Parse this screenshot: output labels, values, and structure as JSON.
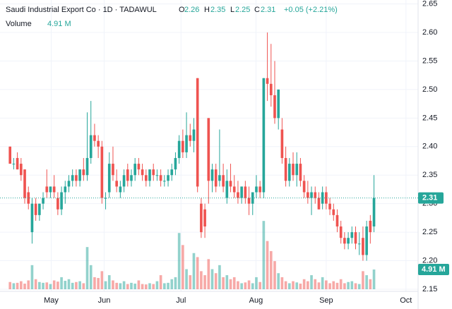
{
  "chart_data": {
    "type": "candlestick",
    "title": "Saudi Industrial Export Co · 1D · TADAWUL",
    "header": {
      "o_label": "O",
      "open": 2.26,
      "h_label": "H",
      "high": 2.35,
      "l_label": "L",
      "low": 2.25,
      "c_label": "C",
      "close": 2.31,
      "change": "+0.05 (+2.21%)",
      "volume_label": "Volume",
      "volume": {
        "value": 4.91,
        "label": "4.91 M"
      }
    },
    "last_price": 2.31,
    "up_color": "#26a69a",
    "down_color": "#ef5350",
    "grid": true,
    "ylim": [
      2.15,
      2.65
    ],
    "yticks": [
      2.15,
      {
        "value": 2.2,
        "label": "2.20"
      },
      2.25,
      {
        "value": 2.3,
        "label": "2.30"
      },
      2.35,
      {
        "value": 2.4,
        "label": "2.40"
      },
      2.45,
      {
        "value": 2.5,
        "label": "2.50"
      },
      2.55,
      {
        "value": 2.6,
        "label": "2.60"
      },
      2.65
    ],
    "xlim": [
      -1,
      111
    ],
    "xticks": [
      {
        "value": 11.2,
        "label": "May"
      },
      {
        "value": 25.6,
        "label": "Jun"
      },
      {
        "value": 46.5,
        "label": "Jul"
      },
      {
        "value": 66.9,
        "label": "Aug"
      },
      {
        "value": 86,
        "label": "Sep"
      },
      {
        "value": 107.7,
        "label": "Oct"
      }
    ],
    "volume_ylim": [
      0,
      71
    ],
    "open": [
      2.4,
      2.37,
      2.38,
      2.37,
      2.36,
      2.32,
      2.25,
      2.3,
      2.28,
      2.3,
      2.33,
      2.32,
      2.33,
      2.31,
      2.29,
      2.32,
      2.33,
      2.34,
      2.35,
      2.34,
      2.36,
      2.35,
      2.38,
      2.42,
      2.41,
      2.4,
      2.31,
      2.32,
      2.37,
      2.34,
      2.32,
      2.33,
      2.36,
      2.34,
      2.35,
      2.37,
      2.36,
      2.35,
      2.34,
      2.36,
      2.35,
      2.35,
      2.34,
      2.34,
      2.35,
      2.36,
      2.38,
      2.41,
      2.39,
      2.42,
      2.41,
      2.52,
      2.3,
      2.29,
      2.45,
      2.34,
      2.36,
      2.34,
      2.35,
      2.31,
      2.34,
      2.33,
      2.32,
      2.31,
      2.33,
      2.31,
      2.3,
      2.32,
      2.33,
      2.32,
      2.52,
      2.51,
      2.49,
      2.45,
      2.43,
      2.38,
      2.34,
      2.37,
      2.35,
      2.37,
      2.34,
      2.32,
      2.31,
      2.32,
      2.31,
      2.3,
      2.32,
      2.3,
      2.29,
      2.28,
      2.26,
      2.24,
      2.23,
      2.24,
      2.25,
      2.23,
      2.24,
      2.21,
      2.27,
      2.26
    ],
    "high": [
      2.4,
      2.38,
      2.39,
      2.38,
      2.36,
      2.33,
      2.31,
      2.31,
      2.3,
      2.32,
      2.36,
      2.33,
      2.35,
      2.32,
      2.33,
      2.34,
      2.35,
      2.36,
      2.36,
      2.36,
      2.38,
      2.46,
      2.48,
      2.44,
      2.42,
      2.41,
      2.32,
      2.39,
      2.4,
      2.36,
      2.34,
      2.36,
      2.37,
      2.36,
      2.38,
      2.38,
      2.37,
      2.36,
      2.36,
      2.37,
      2.36,
      2.36,
      2.35,
      2.36,
      2.37,
      2.39,
      2.42,
      2.43,
      2.46,
      2.44,
      2.45,
      2.52,
      2.31,
      2.3,
      2.45,
      2.37,
      2.37,
      2.43,
      2.37,
      2.36,
      2.37,
      2.35,
      2.34,
      2.33,
      2.34,
      2.33,
      2.32,
      2.35,
      2.34,
      2.52,
      2.6,
      2.58,
      2.55,
      2.5,
      2.45,
      2.4,
      2.38,
      2.39,
      2.39,
      2.38,
      2.35,
      2.34,
      2.33,
      2.33,
      2.32,
      2.33,
      2.33,
      2.31,
      2.3,
      2.29,
      2.27,
      2.25,
      2.25,
      2.26,
      2.26,
      2.25,
      2.26,
      2.27,
      2.28,
      2.35
    ],
    "low": [
      2.37,
      2.36,
      2.36,
      2.34,
      2.3,
      2.29,
      2.23,
      2.27,
      2.27,
      2.29,
      2.31,
      2.31,
      2.31,
      2.28,
      2.28,
      2.3,
      2.32,
      2.33,
      2.33,
      2.33,
      2.34,
      2.34,
      2.37,
      2.4,
      2.38,
      2.3,
      2.29,
      2.31,
      2.34,
      2.32,
      2.31,
      2.32,
      2.33,
      2.33,
      2.34,
      2.35,
      2.34,
      2.33,
      2.33,
      2.34,
      2.34,
      2.33,
      2.33,
      2.33,
      2.34,
      2.35,
      2.37,
      2.38,
      2.38,
      2.4,
      2.39,
      2.32,
      2.24,
      2.24,
      2.3,
      2.32,
      2.32,
      2.33,
      2.32,
      2.3,
      2.32,
      2.31,
      2.3,
      2.3,
      2.3,
      2.28,
      2.28,
      2.31,
      2.31,
      2.31,
      2.48,
      2.47,
      2.44,
      2.43,
      2.37,
      2.33,
      2.33,
      2.34,
      2.33,
      2.33,
      2.31,
      2.3,
      2.28,
      2.3,
      2.29,
      2.29,
      2.29,
      2.28,
      2.27,
      2.25,
      2.23,
      2.22,
      2.22,
      2.23,
      2.22,
      2.21,
      2.2,
      2.2,
      2.23,
      2.25
    ],
    "close": [
      2.37,
      2.37,
      2.36,
      2.35,
      2.31,
      2.3,
      2.3,
      2.28,
      2.3,
      2.31,
      2.32,
      2.33,
      2.32,
      2.29,
      2.32,
      2.33,
      2.34,
      2.35,
      2.34,
      2.36,
      2.35,
      2.38,
      2.42,
      2.41,
      2.4,
      2.31,
      2.31,
      2.37,
      2.35,
      2.33,
      2.33,
      2.35,
      2.34,
      2.35,
      2.37,
      2.36,
      2.35,
      2.34,
      2.36,
      2.35,
      2.35,
      2.34,
      2.34,
      2.35,
      2.36,
      2.38,
      2.41,
      2.39,
      2.42,
      2.41,
      2.43,
      2.33,
      2.25,
      2.26,
      2.34,
      2.36,
      2.33,
      2.35,
      2.33,
      2.34,
      2.33,
      2.32,
      2.31,
      2.33,
      2.31,
      2.3,
      2.32,
      2.33,
      2.32,
      2.52,
      2.51,
      2.49,
      2.45,
      2.5,
      2.38,
      2.34,
      2.37,
      2.35,
      2.37,
      2.34,
      2.32,
      2.31,
      2.32,
      2.31,
      2.29,
      2.32,
      2.3,
      2.29,
      2.28,
      2.26,
      2.24,
      2.23,
      2.24,
      2.25,
      2.23,
      2.23,
      2.21,
      2.26,
      2.25,
      2.31
    ],
    "volume": [
      1.8,
      1.5,
      1.6,
      2.0,
      1.4,
      2.2,
      6.0,
      2.5,
      1.8,
      1.6,
      1.7,
      1.3,
      2.2,
      1.9,
      3.0,
      2.1,
      2.5,
      1.6,
      1.8,
      2.0,
      1.5,
      10.5,
      6.0,
      3.0,
      2.8,
      4.5,
      2.0,
      3.5,
      2.2,
      1.6,
      1.5,
      2.0,
      1.3,
      1.6,
      1.4,
      2.2,
      1.3,
      1.2,
      1.5,
      1.3,
      2.0,
      3.5,
      1.5,
      1.6,
      2.5,
      3.0,
      14.0,
      11.0,
      5.0,
      3.5,
      9.0,
      8.0,
      4.5,
      3.5,
      7.5,
      5.0,
      4.0,
      6.0,
      3.0,
      3.5,
      2.5,
      3.0,
      2.0,
      1.5,
      1.7,
      2.2,
      1.5,
      3.0,
      1.8,
      17.0,
      12.0,
      9.5,
      7.0,
      4.0,
      3.0,
      2.0,
      1.5,
      2.0,
      1.7,
      1.4,
      2.5,
      2.0,
      3.5,
      2.5,
      1.7,
      3.0,
      2.2,
      1.5,
      2.0,
      1.6,
      2.5,
      1.5,
      1.8,
      2.0,
      1.5,
      1.3,
      4.5,
      3.5,
      2.5,
      4.91
    ]
  }
}
